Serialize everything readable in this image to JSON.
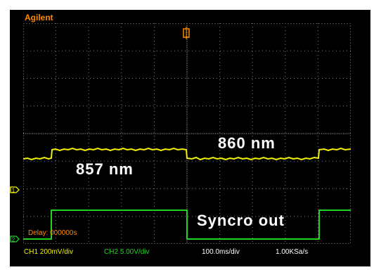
{
  "brand": "Agilent",
  "annotations": {
    "trace1_low_label": "857 nm",
    "trace1_high_label": "860 nm",
    "trace2_label": "Syncro out"
  },
  "delay": "Delay: 000000s",
  "status_bar": {
    "ch1_scale": "CH1 200mV/div",
    "ch2_scale": "CH2 5.00V/div",
    "timebase": "100.0ms/div",
    "sample_rate": "1.00KSa/s"
  },
  "markers": {
    "ch1": "1",
    "ch2": "2"
  },
  "colors": {
    "ch1": "#f2f200",
    "ch2": "#22d422",
    "brand": "#ff8a00",
    "grid": "#8a8a8a"
  }
}
